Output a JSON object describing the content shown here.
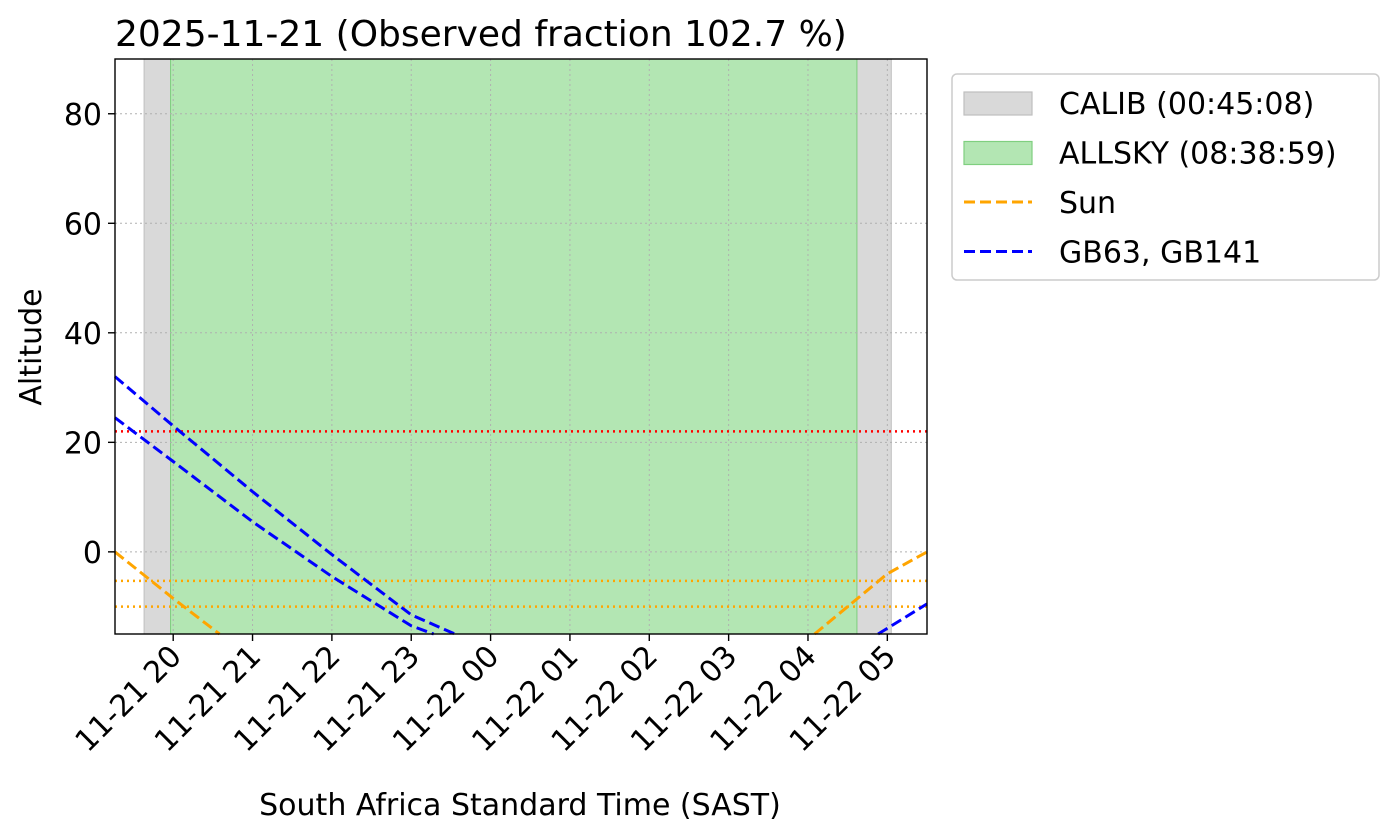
{
  "chart_data": {
    "type": "line",
    "title": "2025-11-21 (Observed fraction 102.7 %)",
    "xlabel": "South Africa Standard Time (SAST)",
    "ylabel": "Altitude",
    "x_range": [
      "2025-11-21 19:16",
      "2025-11-22 05:30"
    ],
    "ylim": [
      -15,
      90
    ],
    "grid": true,
    "legend_position": "outside right, top",
    "x_ticks": [
      {
        "t": "2025-11-21 20:00",
        "label": "11-21 20"
      },
      {
        "t": "2025-11-21 21:00",
        "label": "11-21 21"
      },
      {
        "t": "2025-11-21 22:00",
        "label": "11-21 22"
      },
      {
        "t": "2025-11-21 23:00",
        "label": "11-21 23"
      },
      {
        "t": "2025-11-22 00:00",
        "label": "11-22 00"
      },
      {
        "t": "2025-11-22 01:00",
        "label": "11-22 01"
      },
      {
        "t": "2025-11-22 02:00",
        "label": "11-22 02"
      },
      {
        "t": "2025-11-22 03:00",
        "label": "11-22 03"
      },
      {
        "t": "2025-11-22 04:00",
        "label": "11-22 04"
      },
      {
        "t": "2025-11-22 05:00",
        "label": "11-22 05"
      }
    ],
    "y_ticks": [
      {
        "v": 80,
        "label": "80"
      },
      {
        "v": 60,
        "label": "60"
      },
      {
        "v": 40,
        "label": "40"
      },
      {
        "v": 20,
        "label": "20"
      },
      {
        "v": 0,
        "label": "0"
      }
    ],
    "spans": [
      {
        "name": "CALIB (00:45:08)",
        "color": "#d9d9d9",
        "edge": "#bfbfbf",
        "intervals": [
          [
            "2025-11-21 19:38",
            "2025-11-21 19:58"
          ],
          [
            "2025-11-22 04:37",
            "2025-11-22 05:03"
          ]
        ]
      },
      {
        "name": "ALLSKY (08:38:59)",
        "color": "#b3e6b3",
        "edge": "#7fcf7f",
        "intervals": [
          [
            "2025-11-21 19:58",
            "2025-11-22 04:37"
          ]
        ]
      }
    ],
    "series": [
      {
        "name": "Sun",
        "color": "#ffa500",
        "style": "dashed",
        "segments": [
          [
            {
              "t": "2025-11-21 19:16",
              "y": 0
            },
            {
              "t": "2025-11-21 20:00",
              "y": -8.5
            },
            {
              "t": "2025-11-21 20:35",
              "y": -15
            }
          ],
          [
            {
              "t": "2025-11-22 04:05",
              "y": -15
            },
            {
              "t": "2025-11-22 05:00",
              "y": -4
            },
            {
              "t": "2025-11-22 05:30",
              "y": 0
            }
          ]
        ]
      },
      {
        "name": "GB63, GB141",
        "color": "#0000ff",
        "style": "dashed",
        "segments": [
          [
            {
              "t": "2025-11-21 19:16",
              "y": 32
            },
            {
              "t": "2025-11-21 20:00",
              "y": 23
            },
            {
              "t": "2025-11-21 21:00",
              "y": 11
            },
            {
              "t": "2025-11-21 22:00",
              "y": -0.5
            },
            {
              "t": "2025-11-21 23:00",
              "y": -11.5
            },
            {
              "t": "2025-11-21 23:33",
              "y": -15
            }
          ],
          [
            {
              "t": "2025-11-21 19:16",
              "y": 24.5
            },
            {
              "t": "2025-11-21 20:00",
              "y": 16.5
            },
            {
              "t": "2025-11-21 21:00",
              "y": 5.5
            },
            {
              "t": "2025-11-21 22:00",
              "y": -4.5
            },
            {
              "t": "2025-11-21 23:00",
              "y": -13.5
            },
            {
              "t": "2025-11-21 23:17",
              "y": -15
            }
          ],
          [
            {
              "t": "2025-11-22 04:53",
              "y": -15
            },
            {
              "t": "2025-11-22 05:30",
              "y": -9.5
            }
          ]
        ]
      }
    ],
    "reference_lines": [
      {
        "y": 22,
        "color": "#ff0000",
        "style": "dotted"
      },
      {
        "y": -5.3,
        "color": "#ffa500",
        "style": "dotted"
      },
      {
        "y": -10,
        "color": "#ffa500",
        "style": "dotted"
      }
    ]
  }
}
